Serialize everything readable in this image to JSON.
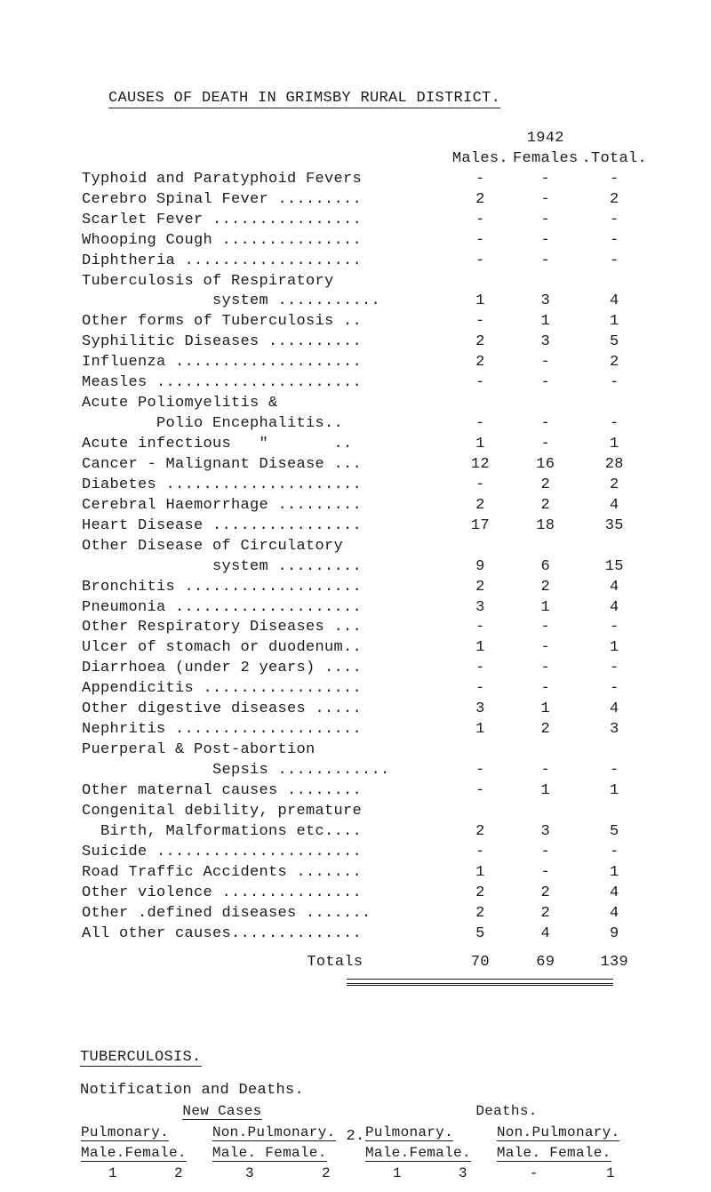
{
  "title": "CAUSES OF DEATH IN GRIMSBY RURAL DISTRICT.",
  "year": "1942",
  "col_headers": {
    "c1": "Males.",
    "c2": "Females",
    "c3": ".Total."
  },
  "rows": [
    {
      "label": "Typhoid and Paratyphoid Fevers",
      "m": "-",
      "f": "-",
      "t": "-"
    },
    {
      "label": "Cerebro Spinal Fever .........",
      "m": "2",
      "f": "-",
      "t": "2"
    },
    {
      "label": "Scarlet Fever ................",
      "m": "-",
      "f": "-",
      "t": "-"
    },
    {
      "label": "Whooping Cough ...............",
      "m": "-",
      "f": "-",
      "t": "-"
    },
    {
      "label": "Diphtheria ...................",
      "m": "-",
      "f": "-",
      "t": "-"
    },
    {
      "label": "Tuberculosis of Respiratory",
      "m": "",
      "f": "",
      "t": ""
    },
    {
      "label": "              system ...........",
      "m": "1",
      "f": "3",
      "t": "4"
    },
    {
      "label": "Other forms of Tuberculosis ..",
      "m": "-",
      "f": "1",
      "t": "1"
    },
    {
      "label": "Syphilitic Diseases ..........",
      "m": "2",
      "f": "3",
      "t": "5"
    },
    {
      "label": "Influenza ....................",
      "m": "2",
      "f": "-",
      "t": "2"
    },
    {
      "label": "Measles ......................",
      "m": "-",
      "f": "-",
      "t": "-"
    },
    {
      "label": "Acute Poliomyelitis &",
      "m": "",
      "f": "",
      "t": ""
    },
    {
      "label": "        Polio Encephalitis..",
      "m": "-",
      "f": "-",
      "t": "-"
    },
    {
      "label": "Acute infectious   \"       ..",
      "m": "1",
      "f": "-",
      "t": "1"
    },
    {
      "label": "Cancer - Malignant Disease ...",
      "m": "12",
      "f": "16",
      "t": "28"
    },
    {
      "label": "Diabetes .....................",
      "m": "-",
      "f": "2",
      "t": "2"
    },
    {
      "label": "Cerebral Haemorrhage .........",
      "m": "2",
      "f": "2",
      "t": "4"
    },
    {
      "label": "Heart Disease ................",
      "m": "17",
      "f": "18",
      "t": "35"
    },
    {
      "label": "Other Disease of Circulatory",
      "m": "",
      "f": "",
      "t": ""
    },
    {
      "label": "              system .........",
      "m": "9",
      "f": "6",
      "t": "15"
    },
    {
      "label": "Bronchitis ...................",
      "m": "2",
      "f": "2",
      "t": "4"
    },
    {
      "label": "Pneumonia ....................",
      "m": "3",
      "f": "1",
      "t": "4"
    },
    {
      "label": "Other Respiratory Diseases ...",
      "m": "-",
      "f": "-",
      "t": "-"
    },
    {
      "label": "Ulcer of stomach or duodenum..",
      "m": "1",
      "f": "-",
      "t": "1"
    },
    {
      "label": "Diarrhoea (under 2 years) ....",
      "m": "-",
      "f": "-",
      "t": "-"
    },
    {
      "label": "Appendicitis .................",
      "m": "-",
      "f": "-",
      "t": "-"
    },
    {
      "label": "Other digestive diseases .....",
      "m": "3",
      "f": "1",
      "t": "4"
    },
    {
      "label": "Nephritis ....................",
      "m": "1",
      "f": "2",
      "t": "3"
    },
    {
      "label": "Puerperal & Post-abortion",
      "m": "",
      "f": "",
      "t": ""
    },
    {
      "label": "              Sepsis ............",
      "m": "-",
      "f": "-",
      "t": "-"
    },
    {
      "label": "Other maternal causes ........",
      "m": "-",
      "f": "1",
      "t": "1"
    },
    {
      "label": "Congenital debility, premature",
      "m": "",
      "f": "",
      "t": ""
    },
    {
      "label": "  Birth, Malformations etc....",
      "m": "2",
      "f": "3",
      "t": "5"
    },
    {
      "label": "Suicide ......................",
      "m": "-",
      "f": "-",
      "t": "-"
    },
    {
      "label": "Road Traffic Accidents .......",
      "m": "1",
      "f": "-",
      "t": "1"
    },
    {
      "label": "Other violence ...............",
      "m": "2",
      "f": "2",
      "t": "4"
    },
    {
      "label": "Other .defined diseases .......",
      "m": "2",
      "f": "2",
      "t": "4"
    },
    {
      "label": "All other causes..............",
      "m": "5",
      "f": "4",
      "t": "9"
    }
  ],
  "totals": {
    "label": "Totals",
    "m": "70",
    "f": "69",
    "t": "139"
  },
  "section2": {
    "heading": "TUBERCULOSIS.",
    "sub": "Notification and Deaths.",
    "new_cases": "New Cases",
    "deaths": "Deaths.",
    "h1": "Pulmonary.",
    "h2": "Non.Pulmonary.",
    "h3": "Pulmonary.",
    "h4": "Non.Pulmonary.",
    "s1": "Male.Female.",
    "s2": "Male. Female.",
    "s3": "Male.Female.",
    "s4": "Male. Female.",
    "vals": [
      "1",
      "2",
      "3",
      "2",
      "1",
      "3",
      "-",
      "1"
    ]
  },
  "footer": "2."
}
